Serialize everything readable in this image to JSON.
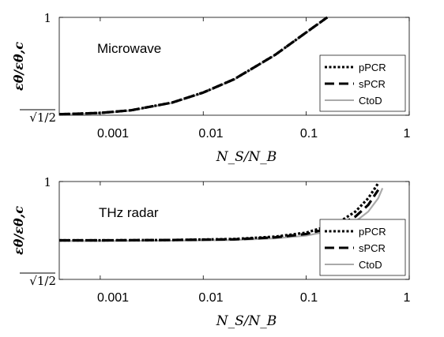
{
  "chart_data": [
    {
      "type": "line",
      "annotation": "Microwave",
      "xlabel": "N_S/N_B",
      "ylabel": "εθ/εθ,c",
      "xscale": "log",
      "xlim": [
        0.0004,
        1
      ],
      "ylim": [
        0.7071,
        1
      ],
      "xticks": [
        0.001,
        0.01,
        0.1,
        1
      ],
      "xtick_labels": [
        "0.001",
        "0.01",
        "0.1",
        "1"
      ],
      "ytick_labels": [
        "√1/2",
        "1"
      ],
      "grid": false,
      "legend": "right",
      "series": [
        {
          "name": "pPCR",
          "style": "dotted",
          "color": "#000000",
          "x": [
            0.0004,
            0.001,
            0.002,
            0.005,
            0.01,
            0.02,
            0.05,
            0.1,
            0.16
          ],
          "y": [
            0.71,
            0.714,
            0.722,
            0.745,
            0.775,
            0.815,
            0.888,
            0.955,
            1.0
          ]
        },
        {
          "name": "sPCR",
          "style": "dashed",
          "color": "#000000",
          "x": [
            0.0004,
            0.001,
            0.002,
            0.005,
            0.01,
            0.02,
            0.05,
            0.1,
            0.16
          ],
          "y": [
            0.71,
            0.714,
            0.722,
            0.745,
            0.775,
            0.815,
            0.888,
            0.955,
            1.0
          ]
        },
        {
          "name": "CtoD",
          "style": "solid",
          "color": "#aaaaaa",
          "x": [
            0.0004,
            0.001,
            0.002,
            0.005,
            0.01,
            0.02,
            0.05,
            0.1,
            0.16
          ],
          "y": [
            0.709,
            0.713,
            0.721,
            0.744,
            0.774,
            0.814,
            0.887,
            0.954,
            0.999
          ]
        }
      ]
    },
    {
      "type": "line",
      "annotation": "THz radar",
      "xlabel": "N_S/N_B",
      "ylabel": "εθ/εθ,c",
      "xscale": "log",
      "xlim": [
        0.0004,
        1
      ],
      "ylim": [
        0.7071,
        1
      ],
      "xticks": [
        0.001,
        0.01,
        0.1,
        1
      ],
      "xtick_labels": [
        "0.001",
        "0.01",
        "0.1",
        "1"
      ],
      "ytick_labels": [
        "√1/2",
        "1"
      ],
      "grid": false,
      "legend": "right",
      "series": [
        {
          "name": "pPCR",
          "style": "dotted",
          "color": "#000000",
          "x": [
            0.0004,
            0.001,
            0.005,
            0.02,
            0.05,
            0.1,
            0.2,
            0.3,
            0.4,
            0.5
          ],
          "y": [
            0.824,
            0.824,
            0.825,
            0.828,
            0.835,
            0.847,
            0.875,
            0.91,
            0.95,
            0.995
          ]
        },
        {
          "name": "sPCR",
          "style": "dashed",
          "color": "#000000",
          "x": [
            0.0004,
            0.001,
            0.005,
            0.02,
            0.05,
            0.1,
            0.2,
            0.3,
            0.4,
            0.5
          ],
          "y": [
            0.824,
            0.824,
            0.825,
            0.827,
            0.833,
            0.843,
            0.866,
            0.895,
            0.93,
            0.975
          ]
        },
        {
          "name": "CtoD",
          "style": "solid",
          "color": "#aaaaaa",
          "x": [
            0.0004,
            0.001,
            0.005,
            0.02,
            0.05,
            0.1,
            0.2,
            0.3,
            0.4,
            0.5,
            0.55
          ],
          "y": [
            0.822,
            0.822,
            0.823,
            0.825,
            0.83,
            0.838,
            0.856,
            0.88,
            0.91,
            0.95,
            0.98
          ]
        }
      ]
    }
  ]
}
